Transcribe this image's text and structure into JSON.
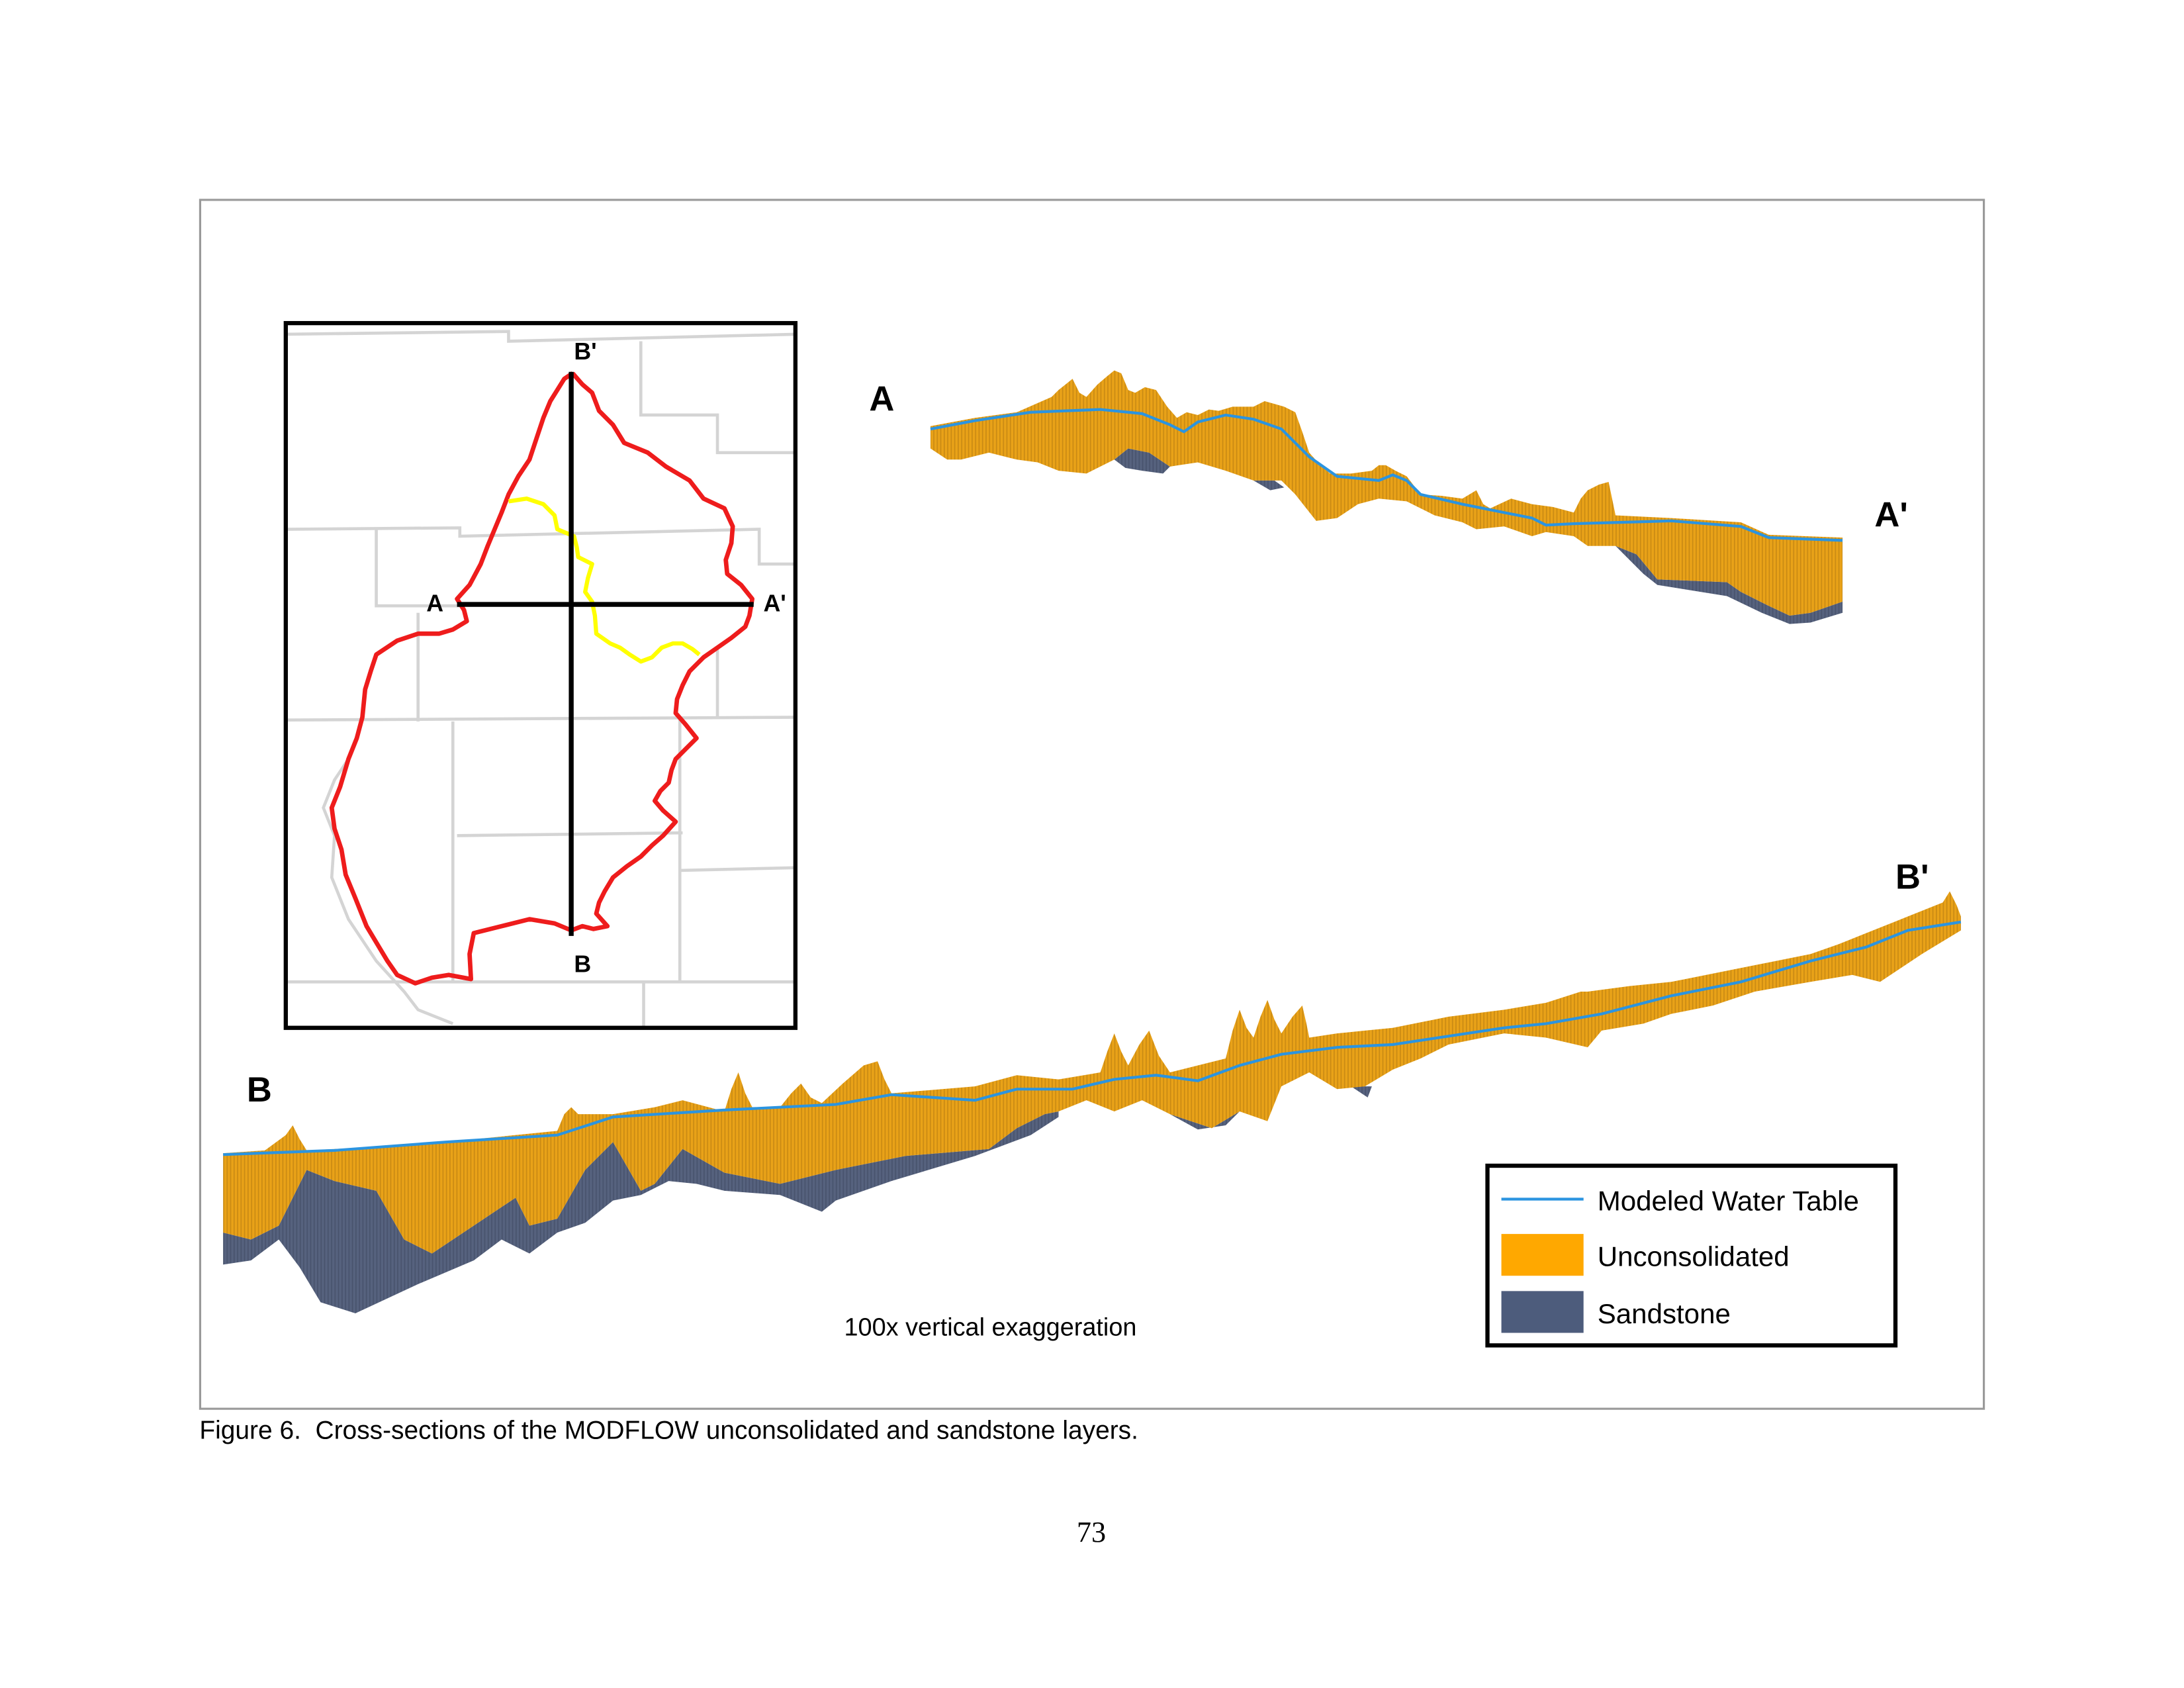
{
  "figure": {
    "inset_map": {
      "labels": {
        "a": "A",
        "a_prime": "A'",
        "b": "B",
        "b_prime": "B'"
      }
    },
    "section_a": {
      "start_label": "A",
      "end_label": "A'"
    },
    "section_b": {
      "start_label": "B",
      "end_label": "B'"
    },
    "exaggeration_note": "100x vertical exaggeration",
    "legend": {
      "items": [
        {
          "label": "Modeled Water Table",
          "color": "#2b94e0"
        },
        {
          "label": "Unconsolidated",
          "color": "#ffa800"
        },
        {
          "label": "Sandstone",
          "color": "#4d5c7c"
        }
      ]
    }
  },
  "caption": "Figure 6.  Cross-sections of the MODFLOW unconsolidated and sandstone layers.",
  "page_number": "73"
}
